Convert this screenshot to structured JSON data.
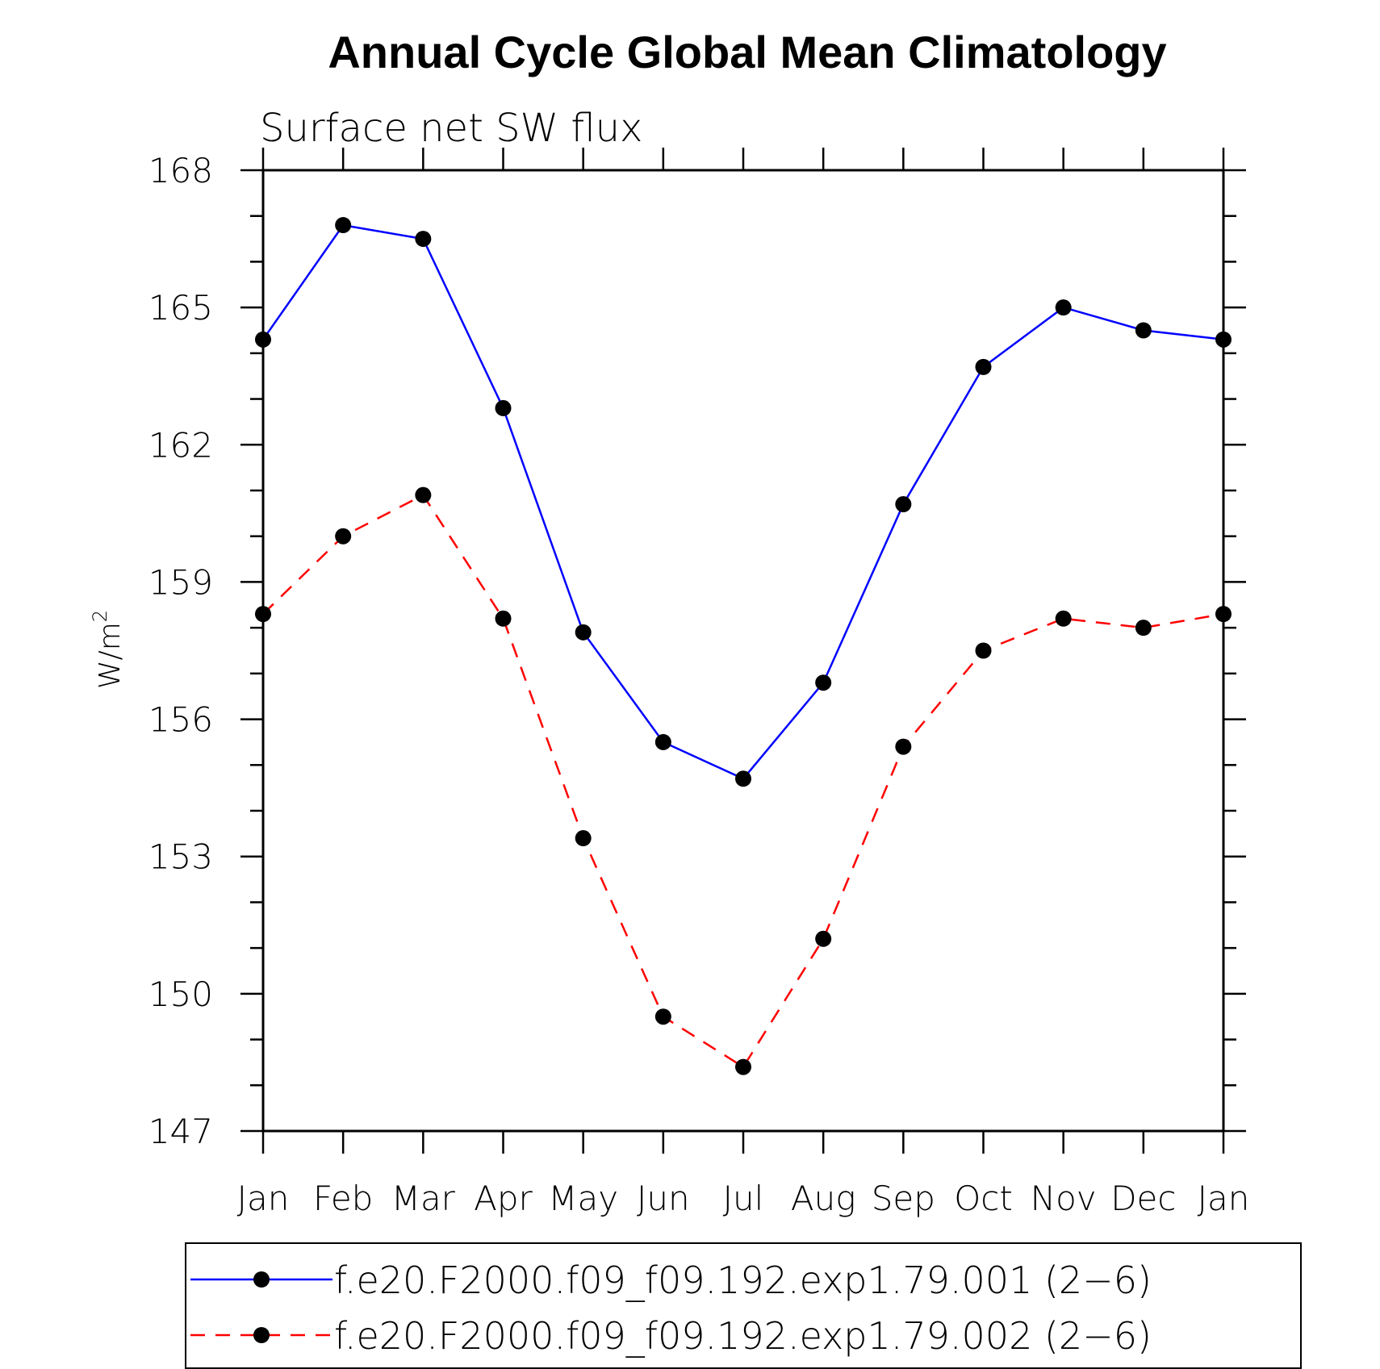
{
  "chart_data": {
    "type": "line",
    "title": "Annual Cycle Global Mean Climatology",
    "subtitle": "Surface net SW flux",
    "ylabel": "W/m",
    "ylabel_superscript": "2",
    "xlabel": "",
    "categories": [
      "Jan",
      "Feb",
      "Mar",
      "Apr",
      "May",
      "Jun",
      "Jul",
      "Aug",
      "Sep",
      "Oct",
      "Nov",
      "Dec",
      "Jan"
    ],
    "ylim": [
      147,
      168
    ],
    "yticks": [
      147,
      150,
      153,
      156,
      159,
      162,
      165,
      168
    ],
    "grid": false,
    "legend_position": "bottom",
    "series": [
      {
        "name": "f.e20.F2000.f09_f09.192.exp1.79.001 (2−6)",
        "color": "#0000ff",
        "dash": "solid",
        "marker": "filled-circle",
        "values": [
          164.3,
          166.8,
          166.5,
          162.8,
          157.9,
          155.5,
          154.7,
          156.8,
          160.7,
          163.7,
          165.0,
          164.5,
          164.3
        ]
      },
      {
        "name": "f.e20.F2000.f09_f09.192.exp1.79.002 (2−6)",
        "color": "#ff0000",
        "dash": "dashed",
        "marker": "filled-circle",
        "values": [
          158.3,
          160.0,
          160.9,
          158.2,
          153.4,
          149.5,
          148.4,
          151.2,
          155.4,
          157.5,
          158.2,
          158.0,
          158.3
        ]
      }
    ]
  }
}
